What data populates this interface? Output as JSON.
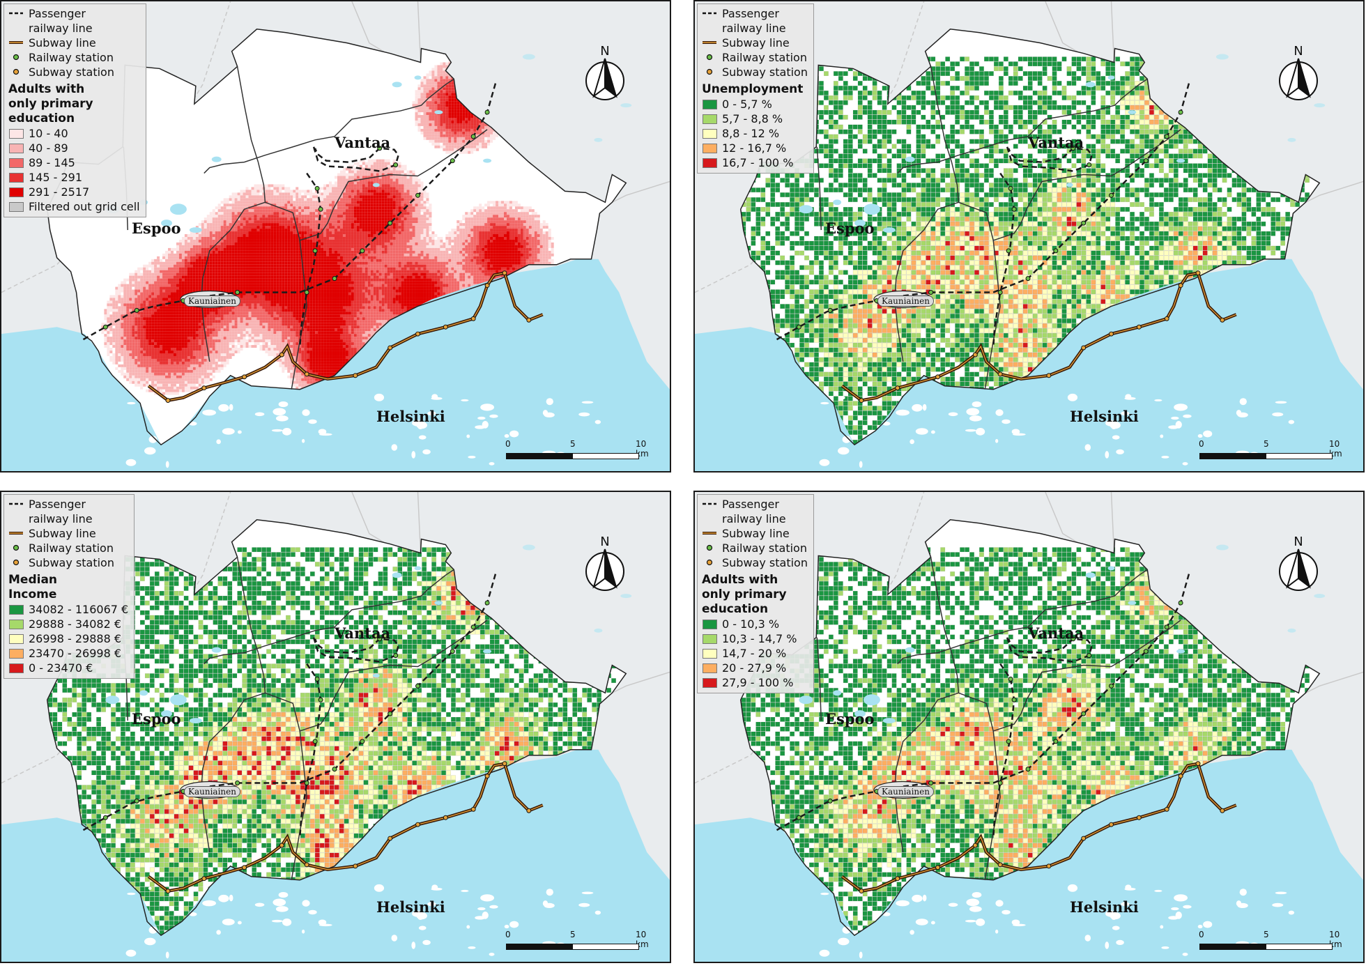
{
  "common_legend": {
    "railway_line": "Passenger railway line",
    "subway_line": "Subway line",
    "railway_station": "Railway station",
    "subway_station": "Subway station"
  },
  "labels": {
    "espoo": "Espoo",
    "vantaa": "Vantaa",
    "helsinki": "Helsinki",
    "kauniainen": "Kauniainen",
    "north": "N"
  },
  "scale_bar": {
    "zero": "0",
    "mid": "5",
    "end": "10 km"
  },
  "colors": {
    "sea": "#a9e2f2",
    "land": "#ffffff",
    "outside_land": "#e9ecee",
    "railway": "#1a1a1a",
    "subway": "#8a4a1a",
    "railway_station": "#6cc04a",
    "subway_station": "#e8a33a"
  },
  "panels": [
    {
      "id": "primary-education-count",
      "legend_title": "Adults with only primary education",
      "classes": [
        {
          "label": "10 - 40",
          "color": "#fde6e6"
        },
        {
          "label": "40 - 89",
          "color": "#f8b4b4"
        },
        {
          "label": "89 - 145",
          "color": "#f26868"
        },
        {
          "label": "145 - 291",
          "color": "#e83232"
        },
        {
          "label": "291 - 2517",
          "color": "#e00000"
        },
        {
          "label": "Filtered out grid cell",
          "color": "#c9c9c9"
        }
      ]
    },
    {
      "id": "unemployment",
      "legend_title": "Unemployment",
      "classes": [
        {
          "label": "0 - 5,7 %",
          "color": "#1a9641"
        },
        {
          "label": "5,7 - 8,8 %",
          "color": "#a6d96a"
        },
        {
          "label": "8,8 - 12 %",
          "color": "#ffffbf"
        },
        {
          "label": "12 - 16,7 %",
          "color": "#fdae61"
        },
        {
          "label": "16,7 - 100 %",
          "color": "#d7191c"
        }
      ]
    },
    {
      "id": "median-income",
      "legend_title": "Median Income",
      "classes": [
        {
          "label": "34082 - 116067 €",
          "color": "#1a9641"
        },
        {
          "label": "29888 - 34082 €",
          "color": "#a6d96a"
        },
        {
          "label": "26998 - 29888 €",
          "color": "#ffffbf"
        },
        {
          "label": "23470 - 26998 €",
          "color": "#fdae61"
        },
        {
          "label": "0 - 23470 €",
          "color": "#d7191c"
        }
      ]
    },
    {
      "id": "primary-education-share",
      "legend_title": "Adults with only primary education",
      "classes": [
        {
          "label": "0 - 10,3 %",
          "color": "#1a9641"
        },
        {
          "label": "10,3 - 14,7 %",
          "color": "#a6d96a"
        },
        {
          "label": "14,7 - 20 %",
          "color": "#ffffbf"
        },
        {
          "label": "20 - 27,9 %",
          "color": "#fdae61"
        },
        {
          "label": "27,9 - 100 %",
          "color": "#d7191c"
        }
      ]
    }
  ]
}
